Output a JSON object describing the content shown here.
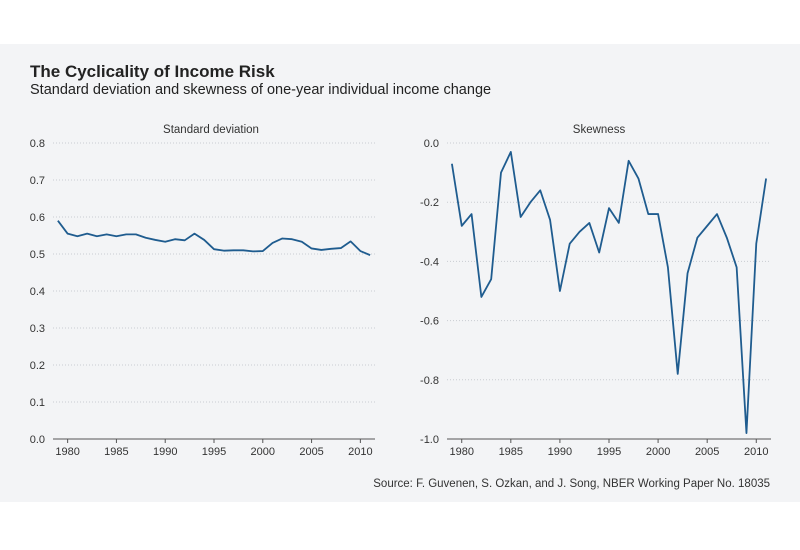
{
  "header": {
    "title": "The Cyclicality of Income Risk",
    "subtitle": "Standard deviation and skewness of one-year individual income change"
  },
  "footer": {
    "source": "Source: F. Guvenen, S. Ozkan, and J. Song, NBER Working Paper No. 18035"
  },
  "colors": {
    "line": "#1f5c8f",
    "background": "#f3f4f6",
    "grid": "#c9ccd1"
  },
  "chart_data": [
    {
      "type": "line",
      "title": "Standard deviation",
      "xlabel": "",
      "ylabel": "",
      "xlim": [
        1978.5,
        2011.5
      ],
      "ylim": [
        0,
        0.8
      ],
      "xticks": [
        1980,
        1985,
        1990,
        1995,
        2000,
        2005,
        2010
      ],
      "yticks": [
        0.0,
        0.1,
        0.2,
        0.3,
        0.4,
        0.5,
        0.6,
        0.7,
        0.8
      ],
      "ytick_labels": [
        "0.0",
        "0.1",
        "0.2",
        "0.3",
        "0.4",
        "0.5",
        "0.6",
        "0.7",
        "0.8"
      ],
      "grid": true,
      "series": [
        {
          "name": "Standard deviation",
          "x": [
            1979,
            1980,
            1981,
            1982,
            1983,
            1984,
            1985,
            1986,
            1987,
            1988,
            1989,
            1990,
            1991,
            1992,
            1993,
            1994,
            1995,
            1996,
            1997,
            1998,
            1999,
            2000,
            2001,
            2002,
            2003,
            2004,
            2005,
            2006,
            2007,
            2008,
            2009,
            2010,
            2011
          ],
          "values": [
            0.59,
            0.555,
            0.548,
            0.555,
            0.548,
            0.553,
            0.548,
            0.553,
            0.553,
            0.544,
            0.538,
            0.533,
            0.54,
            0.537,
            0.555,
            0.538,
            0.513,
            0.509,
            0.51,
            0.51,
            0.507,
            0.508,
            0.53,
            0.542,
            0.54,
            0.533,
            0.515,
            0.511,
            0.514,
            0.516,
            0.534,
            0.508,
            0.497
          ]
        }
      ]
    },
    {
      "type": "line",
      "title": "Skewness",
      "xlabel": "",
      "ylabel": "",
      "xlim": [
        1978.5,
        2011.5
      ],
      "ylim": [
        -1.0,
        0.0
      ],
      "xticks": [
        1980,
        1985,
        1990,
        1995,
        2000,
        2005,
        2010
      ],
      "yticks": [
        0.0,
        -0.2,
        -0.4,
        -0.6,
        -0.8,
        -1.0
      ],
      "ytick_labels": [
        "0.0",
        "-0.2",
        "-0.4",
        "-0.6",
        "-0.8",
        "-1.0"
      ],
      "grid": true,
      "series": [
        {
          "name": "Skewness",
          "x": [
            1979,
            1980,
            1981,
            1982,
            1983,
            1984,
            1985,
            1986,
            1987,
            1988,
            1989,
            1990,
            1991,
            1992,
            1993,
            1994,
            1995,
            1996,
            1997,
            1998,
            1999,
            2000,
            2001,
            2002,
            2003,
            2004,
            2005,
            2006,
            2007,
            2008,
            2009,
            2010,
            2011
          ],
          "values": [
            -0.07,
            -0.28,
            -0.24,
            -0.52,
            -0.46,
            -0.1,
            -0.03,
            -0.25,
            -0.2,
            -0.16,
            -0.26,
            -0.5,
            -0.34,
            -0.3,
            -0.27,
            -0.37,
            -0.22,
            -0.27,
            -0.06,
            -0.12,
            -0.24,
            -0.24,
            -0.42,
            -0.78,
            -0.44,
            -0.32,
            -0.28,
            -0.24,
            -0.32,
            -0.42,
            -0.98,
            -0.34,
            -0.12
          ]
        }
      ]
    }
  ]
}
